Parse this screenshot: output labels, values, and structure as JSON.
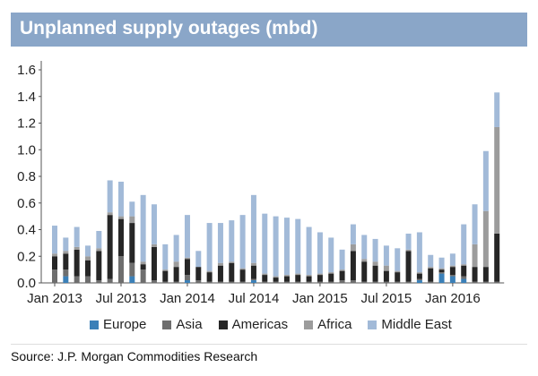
{
  "chart_data": {
    "type": "bar",
    "stacked": true,
    "title": "Unplanned supply outages (mbd)",
    "xlabel": "",
    "ylabel": "",
    "ylim": [
      0,
      1.6
    ],
    "yticks": [
      "0.0",
      "0.2",
      "0.4",
      "0.6",
      "0.8",
      "1.0",
      "1.2",
      "1.4",
      "1.6"
    ],
    "xtick_labels": [
      {
        "bar_index": 0,
        "label": "Jan 2013"
      },
      {
        "bar_index": 6,
        "label": "Jul 2013"
      },
      {
        "bar_index": 12,
        "label": "Jan 2014"
      },
      {
        "bar_index": 18,
        "label": "Jul 2014"
      },
      {
        "bar_index": 24,
        "label": "Jan 2015"
      },
      {
        "bar_index": 30,
        "label": "Jul 2015"
      },
      {
        "bar_index": 36,
        "label": "Jan 2016"
      }
    ],
    "legend_position": "bottom",
    "series": [
      {
        "name": "Europe",
        "color": "#3b80b8",
        "values": [
          0,
          0.05,
          0,
          0,
          0,
          0,
          0,
          0.05,
          0,
          0,
          0,
          0,
          0.02,
          0,
          0,
          0,
          0,
          0,
          0.02,
          0,
          0,
          0,
          0,
          0,
          0,
          0,
          0,
          0,
          0,
          0,
          0,
          0,
          0,
          0.02,
          0,
          0.07,
          0.05,
          0.03,
          0,
          0,
          0
        ]
      },
      {
        "name": "Asia",
        "color": "#6e6e6e",
        "values": [
          0.1,
          0.05,
          0.05,
          0.05,
          0.02,
          0.03,
          0.2,
          0.1,
          0.1,
          0.02,
          0.01,
          0.01,
          0.04,
          0.02,
          0.01,
          0.01,
          0.01,
          0.01,
          0.01,
          0.01,
          0.01,
          0.01,
          0.01,
          0.01,
          0.01,
          0.01,
          0.02,
          0.02,
          0.01,
          0.01,
          0.01,
          0.01,
          0.01,
          0.01,
          0.01,
          0.01,
          0.01,
          0.02,
          0.01,
          0.01,
          0.01
        ]
      },
      {
        "name": "Americas",
        "color": "#262626",
        "values": [
          0.1,
          0.12,
          0.2,
          0.12,
          0.22,
          0.48,
          0.28,
          0.3,
          0.04,
          0.25,
          0.08,
          0.11,
          0.12,
          0.1,
          0.07,
          0.12,
          0.14,
          0.09,
          0.1,
          0.05,
          0.03,
          0.04,
          0.05,
          0.04,
          0.05,
          0.06,
          0.07,
          0.22,
          0.15,
          0.12,
          0.08,
          0.07,
          0.23,
          0.04,
          0.1,
          0.02,
          0.06,
          0.08,
          0.11,
          0.11,
          0.36
        ]
      },
      {
        "name": "Africa",
        "color": "#9c9c9c",
        "values": [
          0.02,
          0.02,
          0.02,
          0.03,
          0.02,
          0.02,
          0.02,
          0.05,
          0.02,
          0.02,
          0.01,
          0.04,
          0.01,
          0,
          0.01,
          0.02,
          0.01,
          0.01,
          0.02,
          0.01,
          0.01,
          0.01,
          0.01,
          0.01,
          0.01,
          0.01,
          0.01,
          0.05,
          0.02,
          0.03,
          0.04,
          0.01,
          0.01,
          0.01,
          0.01,
          0.01,
          0.01,
          0.01,
          0.17,
          0.42,
          0.8
        ]
      },
      {
        "name": "Middle East",
        "color": "#a2bad8",
        "values": [
          0.21,
          0.1,
          0.15,
          0.08,
          0.13,
          0.24,
          0.26,
          0.11,
          0.5,
          0.3,
          0.19,
          0.2,
          0.32,
          0.12,
          0.36,
          0.3,
          0.31,
          0.4,
          0.51,
          0.45,
          0.45,
          0.43,
          0.41,
          0.36,
          0.31,
          0.26,
          0.15,
          0.15,
          0.18,
          0.17,
          0.15,
          0.17,
          0.12,
          0.3,
          0.09,
          0.08,
          0.09,
          0.3,
          0.3,
          0.45,
          0.26
        ]
      }
    ],
    "source": "Source: J.P. Morgan Commodities Research"
  }
}
